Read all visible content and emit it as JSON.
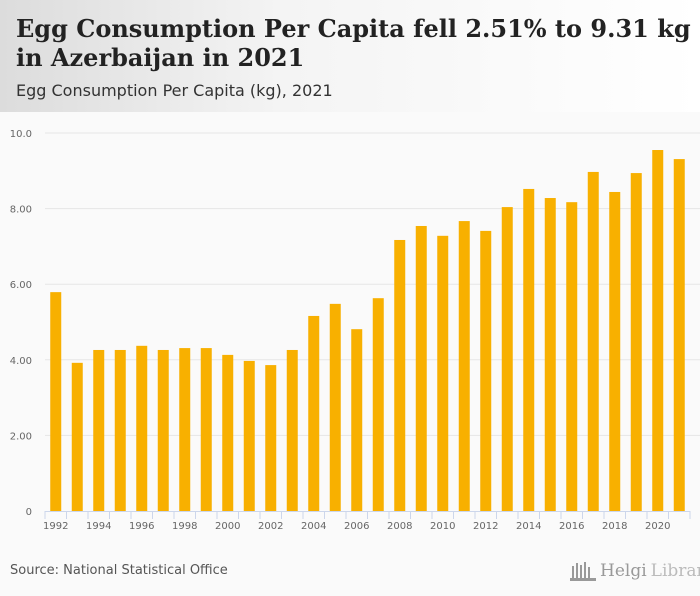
{
  "header": {
    "title": "Egg Consumption Per Capita fell 2.51% to 9.31 kg in Azerbaijan in 2021",
    "subtitle": "Egg Consumption Per Capita (kg), 2021"
  },
  "footer": {
    "source": "Source: National Statistical Office",
    "logo_main": "Helgi",
    "logo_sub": "Library."
  },
  "colors": {
    "bar": "#f8b000",
    "grid": "#e6e6e6",
    "axis": "#ccd6eb"
  },
  "chart_data": {
    "type": "bar",
    "title": "Egg Consumption Per Capita (kg), 2021",
    "xlabel": "",
    "ylabel": "",
    "ylim": [
      0,
      10
    ],
    "yticks": [
      "0",
      "2.00",
      "4.00",
      "6.00",
      "8.00",
      "10.0"
    ],
    "ytick_values": [
      0,
      2,
      4,
      6,
      8,
      10
    ],
    "categories": [
      1992,
      1993,
      1994,
      1995,
      1996,
      1997,
      1998,
      1999,
      2000,
      2001,
      2002,
      2003,
      2004,
      2005,
      2006,
      2007,
      2008,
      2009,
      2010,
      2011,
      2012,
      2013,
      2014,
      2015,
      2016,
      2017,
      2018,
      2019,
      2020,
      2021
    ],
    "xtick_labels": [
      "1992",
      "1994",
      "1996",
      "1998",
      "2000",
      "2002",
      "2004",
      "2006",
      "2008",
      "2010",
      "2012",
      "2014",
      "2016",
      "2018",
      "2020"
    ],
    "values": [
      5.79,
      3.92,
      4.26,
      4.26,
      4.37,
      4.26,
      4.31,
      4.31,
      4.13,
      3.97,
      3.86,
      4.26,
      5.16,
      5.48,
      4.81,
      5.63,
      7.17,
      7.54,
      7.28,
      7.67,
      7.41,
      8.04,
      8.52,
      8.28,
      8.17,
      8.97,
      8.44,
      8.94,
      9.55,
      9.31
    ],
    "grid": true,
    "legend": "none"
  }
}
